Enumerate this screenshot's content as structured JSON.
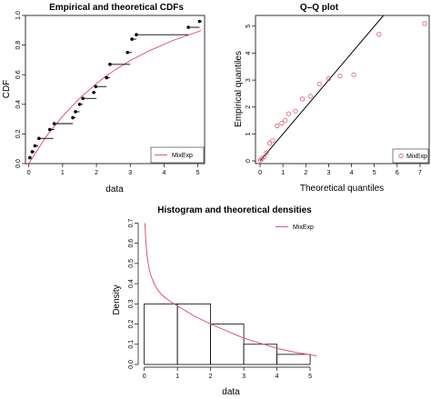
{
  "colors": {
    "theory": "#e0576f",
    "points": "#000000"
  },
  "chart_data": [
    {
      "type": "scatter",
      "title": "Empirical and theoretical CDFs",
      "xlabel": "data",
      "ylabel": "CDF",
      "xlim": [
        -0.1,
        5.2
      ],
      "ylim": [
        0,
        1
      ],
      "xticks": [
        "0",
        "1",
        "2",
        "3",
        "4",
        "5"
      ],
      "yticks": [
        "0.0",
        "0.2",
        "0.4",
        "0.6",
        "0.8",
        "1.0"
      ],
      "legend": {
        "position": "bottom-right",
        "entries": [
          "MixExp"
        ]
      },
      "empirical": [
        {
          "x": 0.03,
          "y": 0.04,
          "next": 0.08
        },
        {
          "x": 0.1,
          "y": 0.08,
          "next": 0.18
        },
        {
          "x": 0.18,
          "y": 0.12,
          "next": 0.28
        },
        {
          "x": 0.3,
          "y": 0.17,
          "next": 0.72
        },
        {
          "x": 0.62,
          "y": 0.23,
          "next": 0.75
        },
        {
          "x": 0.75,
          "y": 0.27,
          "next": 1.3
        },
        {
          "x": 1.3,
          "y": 0.31,
          "next": 1.38
        },
        {
          "x": 1.38,
          "y": 0.35,
          "next": 1.5
        },
        {
          "x": 1.5,
          "y": 0.4,
          "next": 1.6
        },
        {
          "x": 1.6,
          "y": 0.44,
          "next": 2.0
        },
        {
          "x": 1.92,
          "y": 0.48,
          "next": 1.98
        },
        {
          "x": 1.98,
          "y": 0.52,
          "next": 2.3
        },
        {
          "x": 2.3,
          "y": 0.58,
          "next": 2.4
        },
        {
          "x": 2.4,
          "y": 0.67,
          "next": 3.0
        },
        {
          "x": 2.92,
          "y": 0.75,
          "next": 3.05
        },
        {
          "x": 3.05,
          "y": 0.84,
          "next": 3.18
        },
        {
          "x": 3.18,
          "y": 0.87,
          "next": 4.72
        },
        {
          "x": 4.72,
          "y": 0.92,
          "next": 5.05
        },
        {
          "x": 5.05,
          "y": 0.96,
          "next": 5.12
        }
      ],
      "theoretical": {
        "name": "MixExp",
        "x": [
          0,
          0.25,
          0.5,
          0.75,
          1,
          1.25,
          1.5,
          1.75,
          2,
          2.25,
          2.5,
          2.75,
          3,
          3.25,
          3.5,
          3.75,
          4,
          4.25,
          4.5,
          4.75,
          5,
          5.1
        ],
        "y": [
          0,
          0.09,
          0.18,
          0.25,
          0.32,
          0.38,
          0.44,
          0.49,
          0.54,
          0.585,
          0.625,
          0.66,
          0.695,
          0.725,
          0.755,
          0.78,
          0.805,
          0.83,
          0.85,
          0.87,
          0.89,
          0.9
        ]
      }
    },
    {
      "type": "scatter",
      "title": "Q–Q plot",
      "xlabel": "Theoretical quantiles",
      "ylabel": "Empirical quantiles",
      "xlim": [
        -0.2,
        7.4
      ],
      "ylim": [
        -0.1,
        5.4
      ],
      "xticks": [
        "0",
        "1",
        "2",
        "3",
        "4",
        "5",
        "6",
        "7"
      ],
      "yticks": [
        "0",
        "1",
        "2",
        "3",
        "4",
        "5"
      ],
      "legend": {
        "position": "bottom-right",
        "entries": [
          "MixExp"
        ]
      },
      "points": [
        {
          "x": 0.02,
          "y": 0.03
        },
        {
          "x": 0.08,
          "y": 0.08
        },
        {
          "x": 0.18,
          "y": 0.15
        },
        {
          "x": 0.28,
          "y": 0.3
        },
        {
          "x": 0.42,
          "y": 0.65
        },
        {
          "x": 0.55,
          "y": 0.75
        },
        {
          "x": 0.75,
          "y": 1.3
        },
        {
          "x": 0.95,
          "y": 1.4
        },
        {
          "x": 1.1,
          "y": 1.5
        },
        {
          "x": 1.25,
          "y": 1.75
        },
        {
          "x": 1.55,
          "y": 1.85
        },
        {
          "x": 1.85,
          "y": 2.3
        },
        {
          "x": 2.2,
          "y": 2.4
        },
        {
          "x": 2.6,
          "y": 2.85
        },
        {
          "x": 3.0,
          "y": 3.05
        },
        {
          "x": 3.5,
          "y": 3.15
        },
        {
          "x": 4.1,
          "y": 3.2
        },
        {
          "x": 5.2,
          "y": 4.7
        },
        {
          "x": 7.2,
          "y": 5.1
        }
      ],
      "reference_line": {
        "x": [
          0,
          5.4
        ],
        "y": [
          0,
          5.4
        ]
      }
    },
    {
      "type": "bar",
      "title": "Histogram and theoretical densities",
      "xlabel": "data",
      "ylabel": "Density",
      "xlim": [
        -0.1,
        5.3
      ],
      "ylim": [
        0,
        0.72
      ],
      "xticks": [
        "0",
        "1",
        "2",
        "3",
        "4",
        "5"
      ],
      "yticks": [
        "0.0",
        "0.1",
        "0.2",
        "0.3",
        "0.4",
        "0.5",
        "0.6",
        "0.7"
      ],
      "legend": {
        "position": "top-right",
        "entries": [
          "MixExp"
        ]
      },
      "bins": [
        {
          "x0": 0,
          "x1": 1,
          "value": 0.3
        },
        {
          "x0": 1,
          "x1": 2,
          "value": 0.3
        },
        {
          "x0": 2,
          "x1": 3,
          "value": 0.2
        },
        {
          "x0": 3,
          "x1": 4,
          "value": 0.1
        },
        {
          "x0": 4,
          "x1": 5,
          "value": 0.05
        }
      ],
      "theoretical": {
        "name": "MixExp",
        "x": [
          0.02,
          0.05,
          0.1,
          0.15,
          0.2,
          0.3,
          0.4,
          0.5,
          0.6,
          0.8,
          1.0,
          1.25,
          1.5,
          1.75,
          2.0,
          2.5,
          3.0,
          3.5,
          4.0,
          4.5,
          5.0,
          5.2
        ],
        "y": [
          0.7,
          0.6,
          0.52,
          0.47,
          0.44,
          0.4,
          0.37,
          0.35,
          0.335,
          0.31,
          0.29,
          0.265,
          0.24,
          0.22,
          0.2,
          0.165,
          0.13,
          0.105,
          0.08,
          0.062,
          0.048,
          0.043
        ]
      }
    }
  ]
}
